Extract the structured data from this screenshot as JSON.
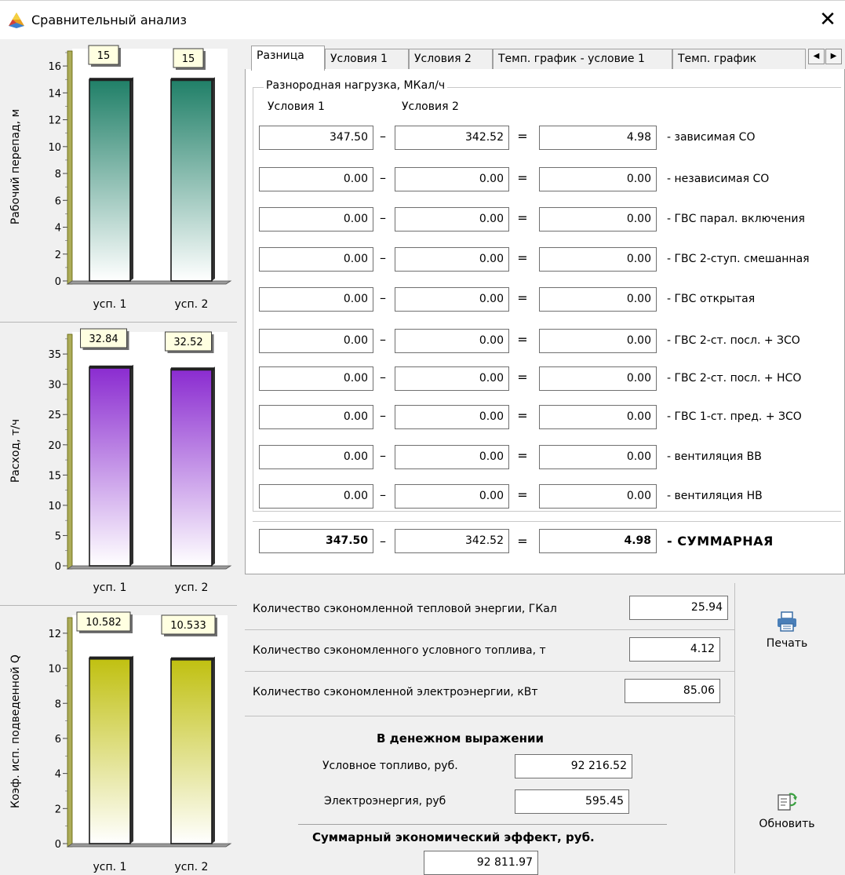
{
  "window": {
    "title": "Сравнительный анализ",
    "close_symbol": "✕"
  },
  "tabs": [
    {
      "label": "Разница",
      "active": true
    },
    {
      "label": "Условия 1",
      "active": false
    },
    {
      "label": "Условия 2",
      "active": false
    },
    {
      "label": "Темп. график - условие 1",
      "active": false
    },
    {
      "label": "Темп. график",
      "active": false
    }
  ],
  "tab_scroll": {
    "left": "◀",
    "right": "▶"
  },
  "group": {
    "title": "Разнородная нагрузка, МКал/ч",
    "col1": "Условия 1",
    "col2": "Условия 2",
    "minus": "–",
    "equals": "=",
    "rows": [
      {
        "v1": "347.50",
        "v2": "342.52",
        "diff": "4.98",
        "label": "- зависимая СО"
      },
      {
        "v1": "0.00",
        "v2": "0.00",
        "diff": "0.00",
        "label": "- независимая СО"
      },
      {
        "v1": "0.00",
        "v2": "0.00",
        "diff": "0.00",
        "label": "- ГВС парал. включения"
      },
      {
        "v1": "0.00",
        "v2": "0.00",
        "diff": "0.00",
        "label": "- ГВС 2-ступ. смешанная"
      },
      {
        "v1": "0.00",
        "v2": "0.00",
        "diff": "0.00",
        "label": "- ГВС открытая"
      },
      {
        "v1": "0.00",
        "v2": "0.00",
        "diff": "0.00",
        "label": "- ГВС 2-ст. посл. + ЗСО"
      },
      {
        "v1": "0.00",
        "v2": "0.00",
        "diff": "0.00",
        "label": "- ГВС 2-ст. посл. + НСО"
      },
      {
        "v1": "0.00",
        "v2": "0.00",
        "diff": "0.00",
        "label": "- ГВС 1-ст. пред. + ЗСО"
      },
      {
        "v1": "0.00",
        "v2": "0.00",
        "diff": "0.00",
        "label": "- вентиляция ВВ"
      },
      {
        "v1": "0.00",
        "v2": "0.00",
        "diff": "0.00",
        "label": "- вентиляция НВ"
      }
    ],
    "total": {
      "v1": "347.50",
      "v2": "342.52",
      "diff": "4.98",
      "label": "- СУММАРНАЯ"
    }
  },
  "savings": [
    {
      "label": "Количество сэкономленной тепловой энергии, ГКал",
      "value": "25.94"
    },
    {
      "label": "Количество сэкономленного условного топлива, т",
      "value": "4.12"
    },
    {
      "label": "Количество сэкономленной электроэнергии, кВт",
      "value": "85.06"
    }
  ],
  "money": {
    "title": "В денежном выражении",
    "fuel_label": "Условное топливо, руб.",
    "fuel_value": "92 216.52",
    "elec_label": "Электроэнергия, руб",
    "elec_value": "595.45",
    "total_label": "Суммарный экономический эффект, руб.",
    "total_value": "92 811.97"
  },
  "buttons": {
    "print": "Печать",
    "refresh": "Обновить"
  },
  "chart_data": [
    {
      "type": "bar",
      "ylabel": "Рабочий перепад, м",
      "categories": [
        "усп. 1",
        "усп. 2"
      ],
      "values": [
        15,
        15
      ],
      "value_labels": [
        "15",
        "15"
      ],
      "ylim": [
        0,
        17
      ],
      "yticks": [
        0,
        2,
        4,
        6,
        8,
        10,
        12,
        14,
        16
      ],
      "color": "#1f7f67"
    },
    {
      "type": "bar",
      "ylabel": "Расход, т/ч",
      "categories": [
        "усп. 1",
        "усп. 2"
      ],
      "values": [
        32.84,
        32.52
      ],
      "value_labels": [
        "32.84",
        "32.52"
      ],
      "ylim": [
        0,
        38
      ],
      "yticks": [
        0,
        5,
        10,
        15,
        20,
        25,
        30,
        35
      ],
      "color": "#8a2bd0"
    },
    {
      "type": "bar",
      "ylabel": "Коэф. исп. подведенной Q",
      "categories": [
        "усп. 1",
        "усп. 2"
      ],
      "values": [
        10.582,
        10.533
      ],
      "value_labels": [
        "10.582",
        "10.533"
      ],
      "ylim": [
        0,
        12.8
      ],
      "yticks": [
        0,
        2,
        4,
        6,
        8,
        10,
        12
      ],
      "color": "#c0c010"
    }
  ]
}
